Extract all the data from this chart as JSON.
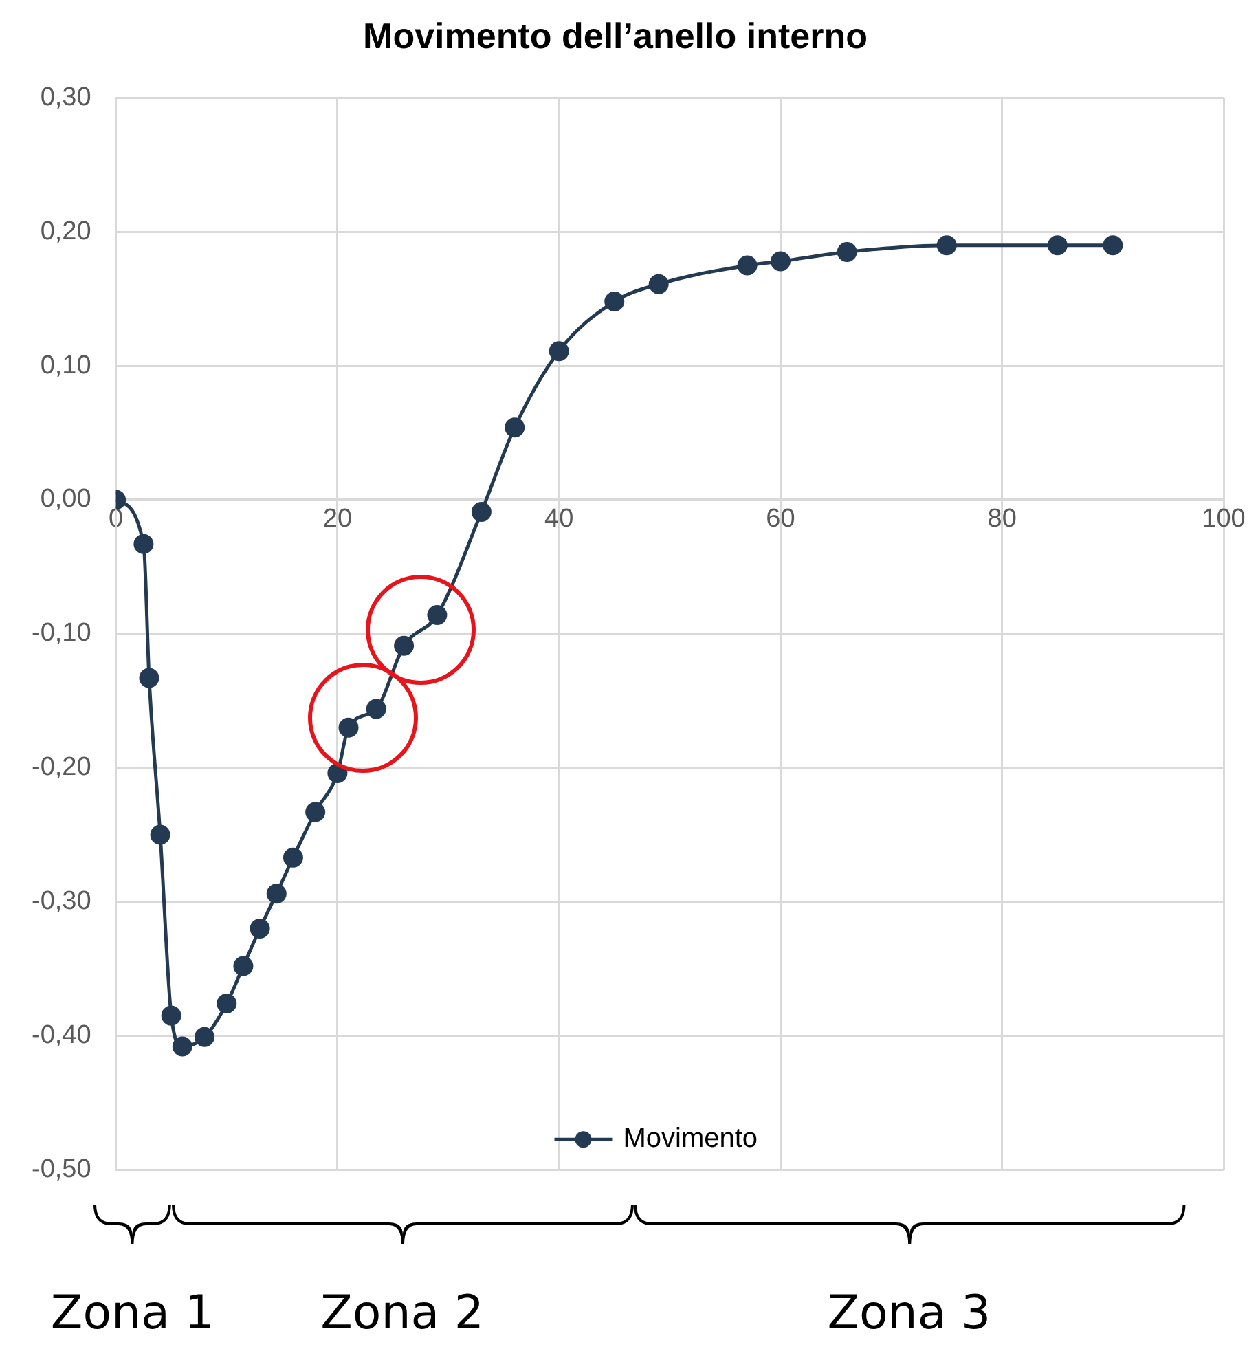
{
  "chart_data": {
    "type": "line",
    "title": "Movimento dell’anello interno",
    "x": [
      0,
      2.5,
      3,
      4,
      5,
      6,
      8,
      10,
      11.5,
      13,
      14.5,
      16,
      18,
      20,
      21,
      23.5,
      26,
      29,
      33,
      36,
      40,
      45,
      49,
      57,
      60,
      66,
      75,
      85,
      90
    ],
    "series": [
      {
        "name": "Movimento",
        "color": "#243a52",
        "values": [
          0,
          -0.033,
          -0.133,
          -0.25,
          -0.385,
          -0.408,
          -0.401,
          -0.376,
          -0.348,
          -0.32,
          -0.294,
          -0.267,
          -0.233,
          -0.204,
          -0.17,
          -0.156,
          -0.109,
          -0.086,
          -0.009,
          0.054,
          0.111,
          0.148,
          0.161,
          0.175,
          0.178,
          0.185,
          0.19,
          0.19,
          0.19
        ]
      }
    ],
    "xlim": [
      0,
      100
    ],
    "xticks": [
      0,
      20,
      40,
      60,
      80,
      100
    ],
    "ylim": [
      -0.5,
      0.3
    ],
    "yticks": [
      {
        "value": -0.5,
        "label": "-0,50"
      },
      {
        "value": -0.4,
        "label": "-0,40"
      },
      {
        "value": -0.3,
        "label": "-0,30"
      },
      {
        "value": -0.2,
        "label": "-0,20"
      },
      {
        "value": -0.1,
        "label": "-0,10"
      },
      {
        "value": 0,
        "label": "0,00"
      },
      {
        "value": 0.1,
        "label": "0,10"
      },
      {
        "value": 0.2,
        "label": "0,20"
      },
      {
        "value": 0.3,
        "label": "0,30"
      }
    ],
    "grid": true,
    "legend": "bottom",
    "marker": "circle",
    "line_style": "solid",
    "annotations": [
      "Zona 1",
      "Zona 2",
      "Zona 3"
    ]
  }
}
